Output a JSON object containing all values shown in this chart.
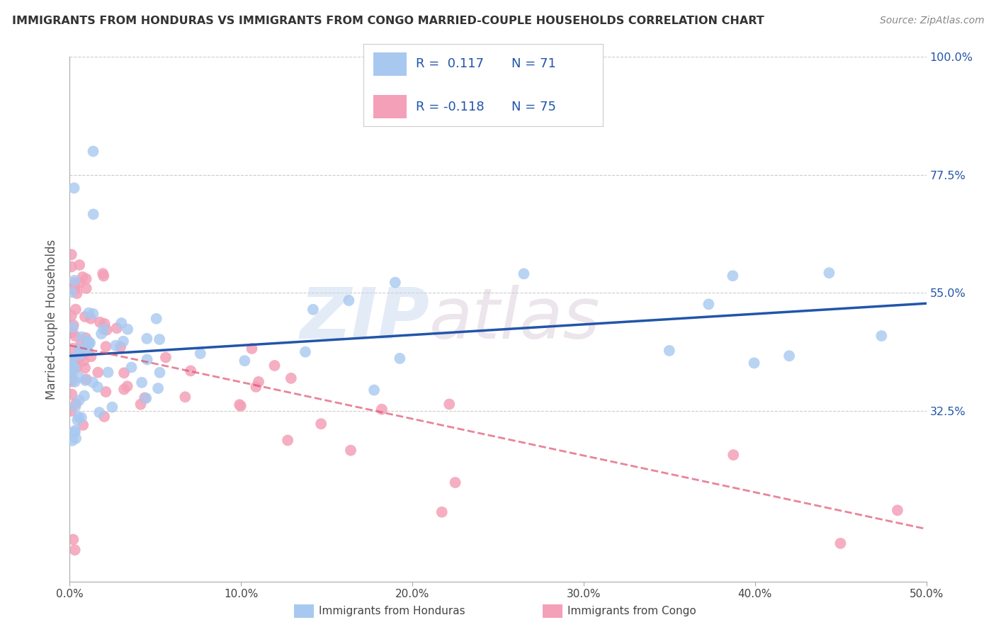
{
  "title": "IMMIGRANTS FROM HONDURAS VS IMMIGRANTS FROM CONGO MARRIED-COUPLE HOUSEHOLDS CORRELATION CHART",
  "source": "Source: ZipAtlas.com",
  "ylabel": "Married-couple Households",
  "x_min": 0.0,
  "x_max": 0.5,
  "y_min": 0.0,
  "y_max": 1.0,
  "x_tick_vals": [
    0.0,
    0.1,
    0.2,
    0.3,
    0.4,
    0.5
  ],
  "x_tick_labels": [
    "0.0%",
    "10.0%",
    "20.0%",
    "30.0%",
    "40.0%",
    "50.0%"
  ],
  "y_tick_vals": [
    0.0,
    0.325,
    0.55,
    0.775,
    1.0
  ],
  "y_tick_labels": [
    "",
    "32.5%",
    "55.0%",
    "77.5%",
    "100.0%"
  ],
  "legend_label1": "Immigrants from Honduras",
  "legend_label2": "Immigrants from Congo",
  "r1": 0.117,
  "n1": 71,
  "r2": -0.118,
  "n2": 75,
  "color_honduras": "#A8C8F0",
  "color_congo": "#F4A0B8",
  "trendline_color_honduras": "#2255AA",
  "trendline_color_congo": "#E05070",
  "background_color": "#FFFFFF",
  "grid_color": "#CCCCCC",
  "watermark_zip": "ZIP",
  "watermark_atlas": "atlas",
  "hond_intercept": 0.425,
  "hond_slope": 0.2,
  "congo_intercept": 0.455,
  "congo_slope": -0.85
}
